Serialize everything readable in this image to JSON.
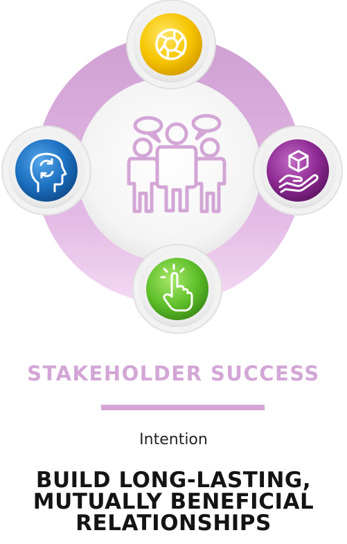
{
  "title": "STAKEHOLDER SUCCESS",
  "subtitle": "Intention",
  "headline": [
    "BUILD LONG-LASTING,",
    "MUTUALLY BENEFICIAL",
    "RELATIONSHIPS"
  ],
  "colors": {
    "ring": "#d9a8dc",
    "accent": "#d3a6d6",
    "icon_top": "#f6c500",
    "icon_right": "#8e2a93",
    "icon_bottom": "#5fbf2a",
    "icon_left": "#1b6fbf"
  },
  "icons": {
    "center": "people-group-icon",
    "top": "shutter-icon",
    "right": "hand-box-icon",
    "bottom": "touch-icon",
    "left": "head-refresh-icon"
  }
}
